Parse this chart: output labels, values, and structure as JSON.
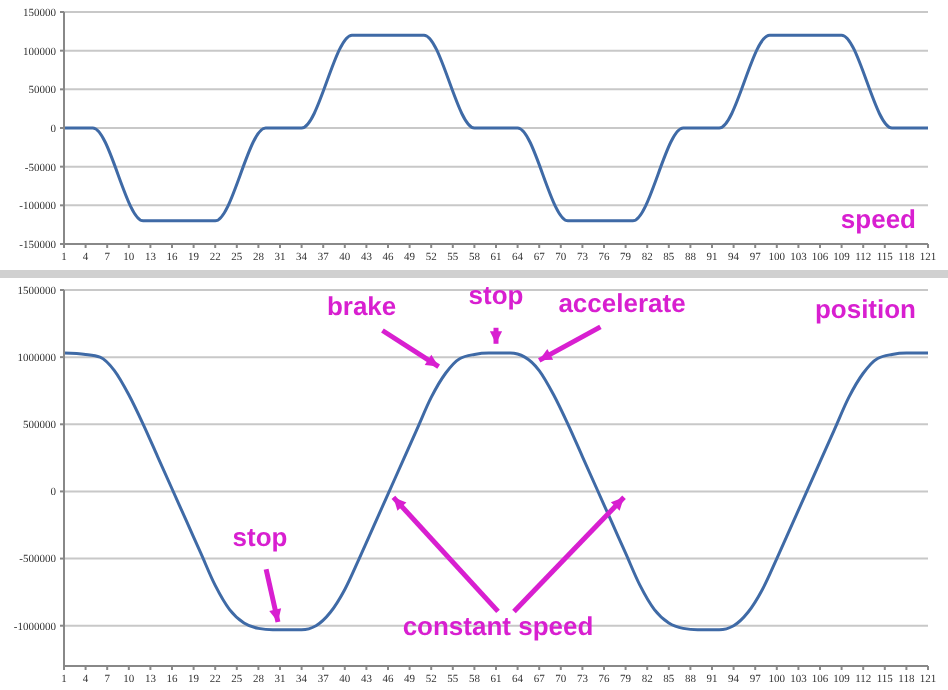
{
  "chart_data": [
    {
      "type": "line",
      "x": [
        1,
        4,
        5,
        12,
        22,
        29,
        34,
        41,
        51,
        58,
        64,
        71,
        80,
        87,
        92,
        99,
        109,
        116,
        121
      ],
      "series": [
        {
          "color": "#3f6aa6",
          "values": [
            0,
            0,
            0,
            -120000,
            -120000,
            0,
            0,
            120000,
            120000,
            0,
            0,
            -120000,
            -120000,
            0,
            0,
            120000,
            120000,
            0,
            0
          ]
        }
      ],
      "xlim": [
        1,
        121
      ],
      "xticks": [
        1,
        4,
        7,
        10,
        13,
        16,
        19,
        22,
        25,
        28,
        31,
        34,
        37,
        40,
        43,
        46,
        49,
        52,
        55,
        58,
        61,
        64,
        67,
        70,
        73,
        76,
        79,
        82,
        85,
        88,
        91,
        94,
        97,
        100,
        103,
        106,
        109,
        112,
        115,
        118,
        121
      ],
      "ylim": [
        -150000,
        150000
      ],
      "yticks": [
        -150000,
        -100000,
        -50000,
        0,
        50000,
        100000,
        150000
      ],
      "grid": "y",
      "marker": "none",
      "line_style": "solid",
      "legend": false,
      "annotations": [
        "speed"
      ]
    },
    {
      "type": "line",
      "x": [
        1,
        4,
        6,
        8,
        10,
        12,
        14,
        16,
        18,
        20,
        22,
        24,
        26,
        28,
        30,
        34,
        36,
        38,
        40,
        42,
        44,
        46,
        48,
        50,
        52,
        54,
        56,
        58,
        60,
        63,
        65,
        67,
        69,
        71,
        73,
        75,
        77,
        79,
        81,
        83,
        85,
        87,
        89,
        92,
        94,
        96,
        98,
        100,
        102,
        104,
        106,
        108,
        110,
        112,
        114,
        116,
        118,
        121
      ],
      "series": [
        {
          "color": "#3f6aa6",
          "values": [
            1030000,
            1020000,
            1000000,
            900000,
            720000,
            500000,
            260000,
            20000,
            -220000,
            -460000,
            -700000,
            -880000,
            -980000,
            -1020000,
            -1030000,
            -1030000,
            -1000000,
            -900000,
            -730000,
            -500000,
            -260000,
            -20000,
            220000,
            460000,
            700000,
            880000,
            990000,
            1020000,
            1030000,
            1030000,
            1000000,
            900000,
            720000,
            500000,
            260000,
            20000,
            -220000,
            -460000,
            -700000,
            -880000,
            -980000,
            -1020000,
            -1030000,
            -1030000,
            -1000000,
            -900000,
            -730000,
            -500000,
            -260000,
            -20000,
            220000,
            460000,
            700000,
            880000,
            990000,
            1020000,
            1030000,
            1030000
          ]
        }
      ],
      "xlim": [
        1,
        121
      ],
      "xticks": [
        1,
        4,
        7,
        10,
        13,
        16,
        19,
        22,
        25,
        28,
        31,
        34,
        37,
        40,
        43,
        46,
        49,
        52,
        55,
        58,
        61,
        64,
        67,
        70,
        73,
        76,
        79,
        82,
        85,
        88,
        91,
        94,
        97,
        100,
        103,
        106,
        109,
        112,
        115,
        118,
        121
      ],
      "ylim": [
        -1300000,
        1500000
      ],
      "yticks": [
        -1000000,
        -500000,
        0,
        500000,
        1000000,
        1500000
      ],
      "grid": "y",
      "marker": "none",
      "line_style": "solid",
      "legend": false,
      "annotations": [
        {
          "text": "brake",
          "x": 54,
          "y": 900000
        },
        {
          "text": "stop",
          "x": 61,
          "y": 1040000
        },
        {
          "text": "accelerate",
          "x": 66,
          "y": 950000
        },
        "position",
        {
          "text": "stop",
          "x": 31,
          "y": -1030000
        },
        {
          "text": "constant speed",
          "x": 46,
          "y": 0
        }
      ]
    }
  ]
}
